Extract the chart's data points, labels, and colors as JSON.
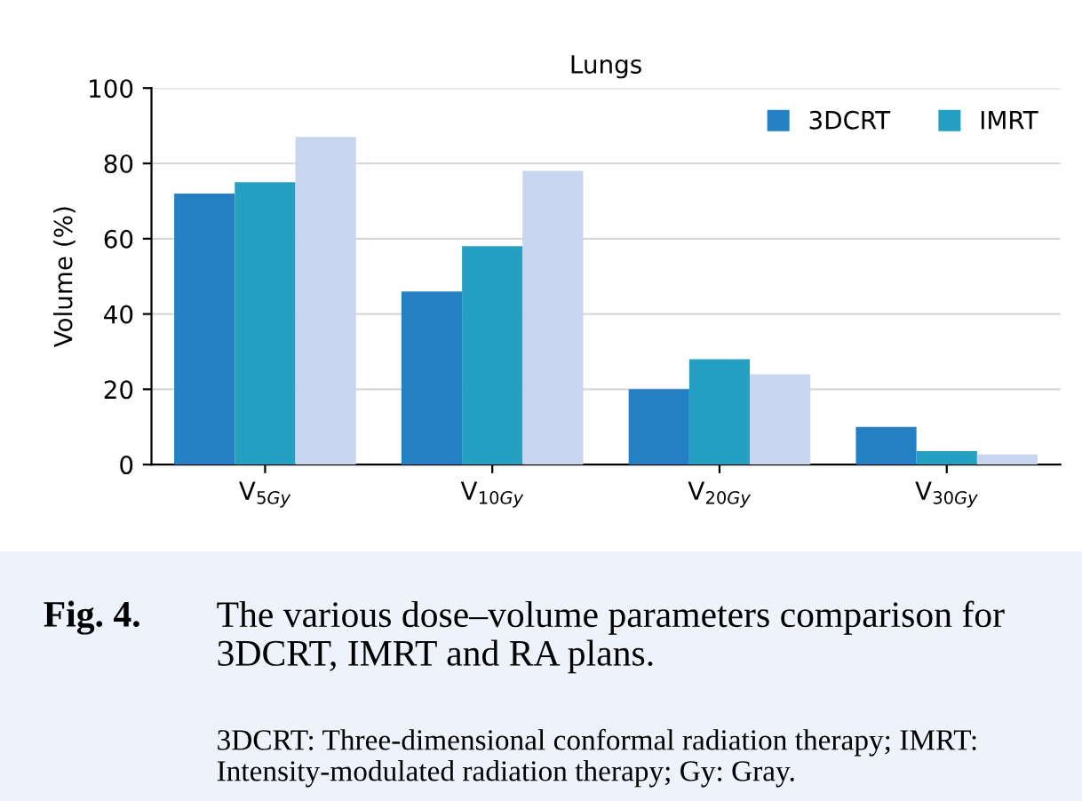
{
  "chart_data": {
    "type": "bar",
    "title": "Lungs",
    "ylabel": "Volume (%)",
    "categories": [
      "V$_{5Gy}$",
      "V$_{10Gy}$",
      "V$_{20Gy}$",
      "V$_{30Gy}$"
    ],
    "series": [
      {
        "name": "3DCRT",
        "color": "#2580c3",
        "values": [
          72,
          46,
          20,
          10
        ]
      },
      {
        "name": "IMRT",
        "color": "#25a0c3",
        "values": [
          75,
          58,
          28,
          3.6
        ]
      },
      {
        "color": "#c8d5ee",
        "values": [
          87,
          78,
          24,
          2.7
        ]
      }
    ],
    "ylim": [
      0,
      100
    ],
    "yticks": [
      0,
      20,
      40,
      60,
      80,
      100
    ],
    "grid": "y",
    "legend": "top right",
    "annotations": [
      "Fig. 4.",
      "The various dose–volume parameters comparison for 3DCRT, IMRT and RA plans.",
      "3DCRT: Three-dimensional conformal radiation therapy; IMRT: Intensity-modulated radiation therapy; Gy: Gray."
    ]
  }
}
